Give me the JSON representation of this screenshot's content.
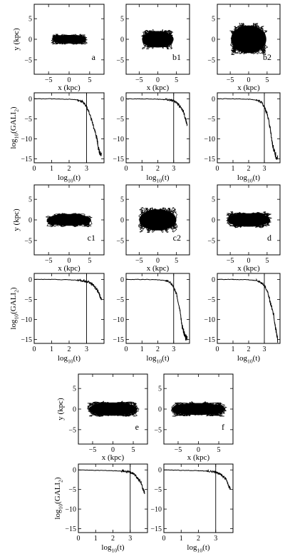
{
  "figure": {
    "orbit_axes": {
      "xlabel": "x (kpc)",
      "ylabel": "y (kpc)",
      "xlim": [
        -8.5,
        8.5
      ],
      "ylim": [
        -8.5,
        8.5
      ],
      "xticks": [
        -5,
        0,
        5
      ],
      "yticks": [
        -5,
        0,
        5
      ]
    },
    "gali_axes": {
      "xlabel": "log10(t)",
      "ylabel": "log10(GALI2)",
      "xlim": [
        0,
        4
      ],
      "ylim": [
        -16,
        1.5
      ],
      "xticks": [
        0,
        1,
        2,
        3
      ],
      "yticks": [
        0,
        -5,
        -10,
        -15
      ]
    }
  },
  "chart_data": [
    {
      "id": "a",
      "type": "scatter",
      "label": "a",
      "kind": "orbit",
      "x_extent": [
        -4.5,
        4.5
      ],
      "y_extent": [
        -1.3,
        1.3
      ],
      "xlabel": "x (kpc)",
      "ylabel": "y (kpc)"
    },
    {
      "id": "b1",
      "type": "scatter",
      "label": "b1",
      "kind": "orbit",
      "x_extent": [
        -4.6,
        4.6
      ],
      "y_extent": [
        -2.5,
        2.5
      ],
      "xlabel": "x (kpc)"
    },
    {
      "id": "b2",
      "type": "scatter",
      "label": "b2",
      "kind": "orbit",
      "x_extent": [
        -5.2,
        5.2
      ],
      "y_extent": [
        -4.2,
        4.2
      ],
      "xlabel": "x (kpc)"
    },
    {
      "id": "gali-a",
      "type": "line",
      "kind": "gali",
      "vline": 3,
      "x": [
        0,
        1,
        2,
        2.5,
        2.8,
        3.0,
        3.2,
        3.4,
        3.6,
        3.7,
        3.85
      ],
      "y": [
        0,
        0,
        -0.1,
        -0.3,
        -0.8,
        -2,
        -4,
        -7,
        -10,
        -13,
        -14
      ],
      "xlabel": "log10(t)",
      "ylabel": "log10(GALI2)"
    },
    {
      "id": "gali-b1",
      "type": "line",
      "kind": "gali",
      "vline": 3,
      "x": [
        0,
        1,
        2,
        2.5,
        2.8,
        3.0,
        3.2,
        3.4,
        3.6,
        3.75,
        3.85
      ],
      "y": [
        0,
        0,
        -0.1,
        -0.2,
        -0.3,
        -0.5,
        -1,
        -2,
        -3,
        -5,
        -6.5
      ],
      "xlabel": "log10(t)"
    },
    {
      "id": "gali-b2",
      "type": "line",
      "kind": "gali",
      "vline": 3,
      "x": [
        0,
        1,
        2,
        2.5,
        2.8,
        3.0,
        3.2,
        3.4,
        3.55,
        3.7,
        3.85
      ],
      "y": [
        0,
        0,
        -0.1,
        -0.3,
        -0.8,
        -2,
        -4,
        -8,
        -12,
        -14,
        -15
      ],
      "xlabel": "log10(t)"
    },
    {
      "id": "c1",
      "type": "scatter",
      "label": "c1",
      "kind": "orbit",
      "x_extent": [
        -5.8,
        5.8
      ],
      "y_extent": [
        -1.8,
        1.8
      ],
      "xlabel": "x (kpc)",
      "ylabel": "y (kpc)"
    },
    {
      "id": "c2",
      "type": "scatter",
      "label": "c2",
      "kind": "orbit",
      "x_extent": [
        -5.4,
        5.4
      ],
      "y_extent": [
        -3.2,
        3.2
      ],
      "xlabel": "x (kpc)"
    },
    {
      "id": "d",
      "type": "scatter",
      "label": "d",
      "kind": "orbit",
      "x_extent": [
        -6.3,
        6.3
      ],
      "y_extent": [
        -2.0,
        2.0
      ],
      "xlabel": "x (kpc)"
    },
    {
      "id": "gali-c1",
      "type": "line",
      "kind": "gali",
      "vline": 3,
      "x": [
        0,
        1,
        2,
        2.5,
        2.8,
        3.0,
        3.2,
        3.4,
        3.6,
        3.75,
        3.85
      ],
      "y": [
        0,
        0,
        -0.1,
        -0.2,
        -0.3,
        -0.5,
        -0.8,
        -1.5,
        -2.5,
        -4,
        -5
      ],
      "xlabel": "log10(t)",
      "ylabel": "log10(GALI2)"
    },
    {
      "id": "gali-c2",
      "type": "line",
      "kind": "gali",
      "vline": 3,
      "x": [
        0,
        1,
        2,
        2.5,
        2.8,
        3.0,
        3.2,
        3.4,
        3.55,
        3.7,
        3.85
      ],
      "y": [
        0,
        0,
        -0.1,
        -0.3,
        -0.8,
        -2,
        -4,
        -8,
        -12,
        -14,
        -15
      ],
      "xlabel": "log10(t)"
    },
    {
      "id": "gali-d",
      "type": "line",
      "kind": "gali",
      "vline": 3,
      "x": [
        0,
        1,
        2,
        2.5,
        2.8,
        3.0,
        3.2,
        3.4,
        3.6,
        3.75,
        3.85
      ],
      "y": [
        0,
        0,
        -0.1,
        -0.3,
        -0.8,
        -1.5,
        -3,
        -6,
        -9,
        -13,
        -15
      ],
      "xlabel": "log10(t)"
    },
    {
      "id": "e",
      "type": "scatter",
      "label": "e",
      "kind": "orbit",
      "x_extent": [
        -6.5,
        6.5
      ],
      "y_extent": [
        -2.0,
        2.0
      ],
      "xlabel": "x (kpc)",
      "ylabel": "y (kpc)"
    },
    {
      "id": "f",
      "type": "scatter",
      "label": "f",
      "kind": "orbit",
      "x_extent": [
        -7.2,
        7.2
      ],
      "y_extent": [
        -1.8,
        1.8
      ],
      "xlabel": "x (kpc)"
    },
    {
      "id": "gali-e",
      "type": "line",
      "kind": "gali",
      "vline": 3,
      "x": [
        0,
        1,
        2,
        2.5,
        2.8,
        3.0,
        3.2,
        3.4,
        3.6,
        3.75,
        3.85
      ],
      "y": [
        0,
        -0.1,
        -0.2,
        -0.3,
        -0.4,
        -0.6,
        -1,
        -2,
        -3,
        -5,
        -6
      ],
      "xlabel": "log10(t)",
      "ylabel": "log10(GALI2)"
    },
    {
      "id": "gali-f",
      "type": "line",
      "kind": "gali",
      "vline": 3,
      "x": [
        0,
        1,
        2,
        2.5,
        2.8,
        3.0,
        3.2,
        3.4,
        3.6,
        3.75,
        3.85
      ],
      "y": [
        0,
        -0.1,
        -0.2,
        -0.3,
        -0.4,
        -0.6,
        -0.9,
        -1.5,
        -2.5,
        -4,
        -5
      ],
      "xlabel": "log10(t)"
    }
  ]
}
